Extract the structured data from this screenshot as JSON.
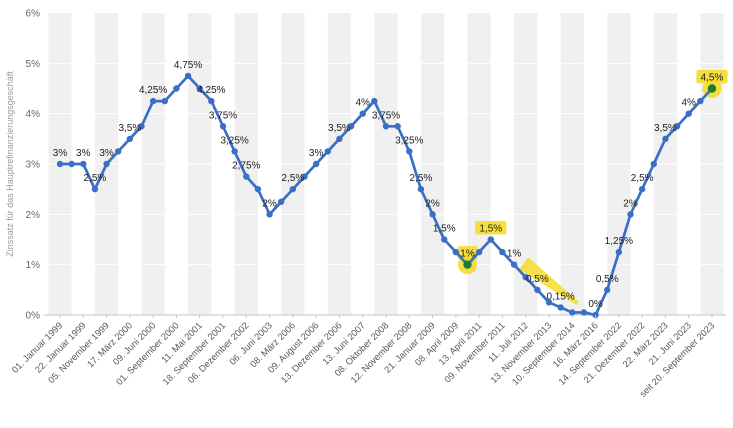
{
  "chart_data": {
    "type": "line",
    "title": "",
    "ylabel": "Zinssatz für das Hauptrefinanzierungsgeschäft",
    "xlabel": "",
    "ylim": [
      0,
      6
    ],
    "ytick_labels": [
      "0%",
      "1%",
      "2%",
      "3%",
      "4%",
      "5%",
      "6%"
    ],
    "grid": "vertical-alternating-bands",
    "legend": "none",
    "colors": {
      "line": "#3b6fc5",
      "marker": "#3b6fc5",
      "highlight": "#f6d91e",
      "highlight_marker": "#1f7a33",
      "band": "#f0f0f0",
      "axis": "#c4c4c4",
      "tick_text": "#595959",
      "value_text": "#1c1c1c",
      "axis_title_text": "#9b9b9b"
    },
    "points": [
      {
        "v": 3,
        "x_label": "01. Januar 1999",
        "value_label": "3%"
      },
      {
        "v": 3
      },
      {
        "v": 3,
        "x_label": "22. Januar 1999",
        "value_label": "3%"
      },
      {
        "v": 2.5,
        "value_label": "2,5%"
      },
      {
        "v": 3,
        "x_label": "05. November 1999",
        "value_label": "3%"
      },
      {
        "v": 3.25
      },
      {
        "v": 3.5,
        "x_label": "17. März 2000",
        "value_label": "3,5%"
      },
      {
        "v": 3.75
      },
      {
        "v": 4.25,
        "x_label": "09. Juni 2000",
        "value_label": "4,25%"
      },
      {
        "v": 4.25
      },
      {
        "v": 4.5,
        "x_label": "01. September 2000"
      },
      {
        "v": 4.75,
        "value_label": "4,75%"
      },
      {
        "v": 4.5,
        "x_label": "11. Mai 2001"
      },
      {
        "v": 4.25,
        "value_label": "4,25%"
      },
      {
        "v": 3.75,
        "x_label": "18. September 2001",
        "value_label": "3,75%"
      },
      {
        "v": 3.25,
        "value_label": "3,25%"
      },
      {
        "v": 2.75,
        "x_label": "06. Dezember 2002",
        "value_label": "2,75%"
      },
      {
        "v": 2.5
      },
      {
        "v": 2,
        "x_label": "06. Juni 2003",
        "value_label": "2%"
      },
      {
        "v": 2.25
      },
      {
        "v": 2.5,
        "x_label": "08. März 2006",
        "value_label": "2,5%"
      },
      {
        "v": 2.75
      },
      {
        "v": 3,
        "x_label": "09. August 2006",
        "value_label": "3%"
      },
      {
        "v": 3.25
      },
      {
        "v": 3.5,
        "x_label": "13. Dezember 2006",
        "value_label": "3,5%"
      },
      {
        "v": 3.75
      },
      {
        "v": 4,
        "x_label": "13. Juni 2007",
        "value_label": "4%"
      },
      {
        "v": 4.25
      },
      {
        "v": 3.75,
        "x_label": "08. Oktober 2008",
        "value_label": "3,75%"
      },
      {
        "v": 3.75
      },
      {
        "v": 3.25,
        "x_label": "12. November 2008",
        "value_label": "3,25%"
      },
      {
        "v": 2.5,
        "value_label": "2,5%"
      },
      {
        "v": 2,
        "x_label": "21. Januar 2009",
        "value_label": "2%"
      },
      {
        "v": 1.5,
        "value_label": "1,5%"
      },
      {
        "v": 1.25,
        "x_label": "08. April 2009"
      },
      {
        "v": 1,
        "value_label": "1%"
      },
      {
        "v": 1.25,
        "x_label": "13. April 2011"
      },
      {
        "v": 1.5,
        "value_label": "1,5%"
      },
      {
        "v": 1.25,
        "x_label": "09. November 2011"
      },
      {
        "v": 1,
        "value_label": "1%"
      },
      {
        "v": 0.75,
        "x_label": "11. Juli 2012"
      },
      {
        "v": 0.5,
        "value_label": "0,5%"
      },
      {
        "v": 0.25,
        "x_label": "13. November 2013"
      },
      {
        "v": 0.15,
        "value_label": "0,15%"
      },
      {
        "v": 0.05,
        "x_label": "10. September 2014"
      },
      {
        "v": 0.05
      },
      {
        "v": 0,
        "x_label": "16. März 2016",
        "value_label": "0%"
      },
      {
        "v": 0.5,
        "value_label": "0,5%"
      },
      {
        "v": 1.25,
        "x_label": "14. September 2022",
        "value_label": "1,25%"
      },
      {
        "v": 2,
        "value_label": "2%"
      },
      {
        "v": 2.5,
        "x_label": "21. Dezember 2022",
        "value_label": "2,5%"
      },
      {
        "v": 3
      },
      {
        "v": 3.5,
        "x_label": "22. März 2023",
        "value_label": "3,5%"
      },
      {
        "v": 3.75
      },
      {
        "v": 4,
        "x_label": "21. Juni 2023",
        "value_label": "4%"
      },
      {
        "v": 4.25
      },
      {
        "v": 4.5,
        "x_label": "seit 20. September 2023",
        "value_label": "4,5%"
      }
    ],
    "annotations": {
      "label_highlight_indices": [
        35,
        37,
        56
      ],
      "marker_highlight_indices": [
        35,
        56
      ],
      "swoosh": {
        "from_index": 40,
        "to_index": 43
      }
    }
  }
}
